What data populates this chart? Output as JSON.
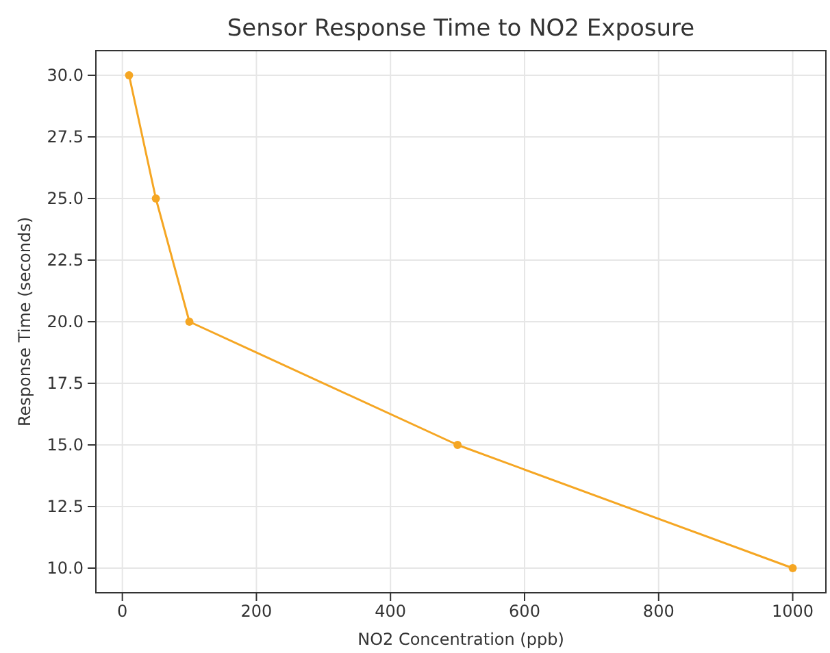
{
  "chart_data": {
    "type": "line",
    "title": "Sensor Response Time to NO2 Exposure",
    "xlabel": "NO2 Concentration (ppb)",
    "ylabel": "Response Time (seconds)",
    "x": [
      10,
      50,
      100,
      500,
      1000
    ],
    "series": [
      {
        "color": "#f5a623",
        "values": [
          30,
          25,
          20,
          15,
          10
        ]
      }
    ],
    "xlim": [
      -39.5,
      1049.5
    ],
    "xticks": [
      0,
      200,
      400,
      600,
      800,
      1000
    ],
    "ylim": [
      9,
      31
    ],
    "yticks": [
      {
        "value": 10,
        "label": "10.0"
      },
      {
        "value": 12.5,
        "label": "12.5"
      },
      {
        "value": 15,
        "label": "15.0"
      },
      {
        "value": 17.5,
        "label": "17.5"
      },
      {
        "value": 20,
        "label": "20.0"
      },
      {
        "value": 22.5,
        "label": "22.5"
      },
      {
        "value": 25,
        "label": "25.0"
      },
      {
        "value": 27.5,
        "label": "27.5"
      },
      {
        "value": 30,
        "label": "30.0"
      }
    ],
    "grid": true,
    "marker": "circle",
    "line_style": "solid"
  }
}
